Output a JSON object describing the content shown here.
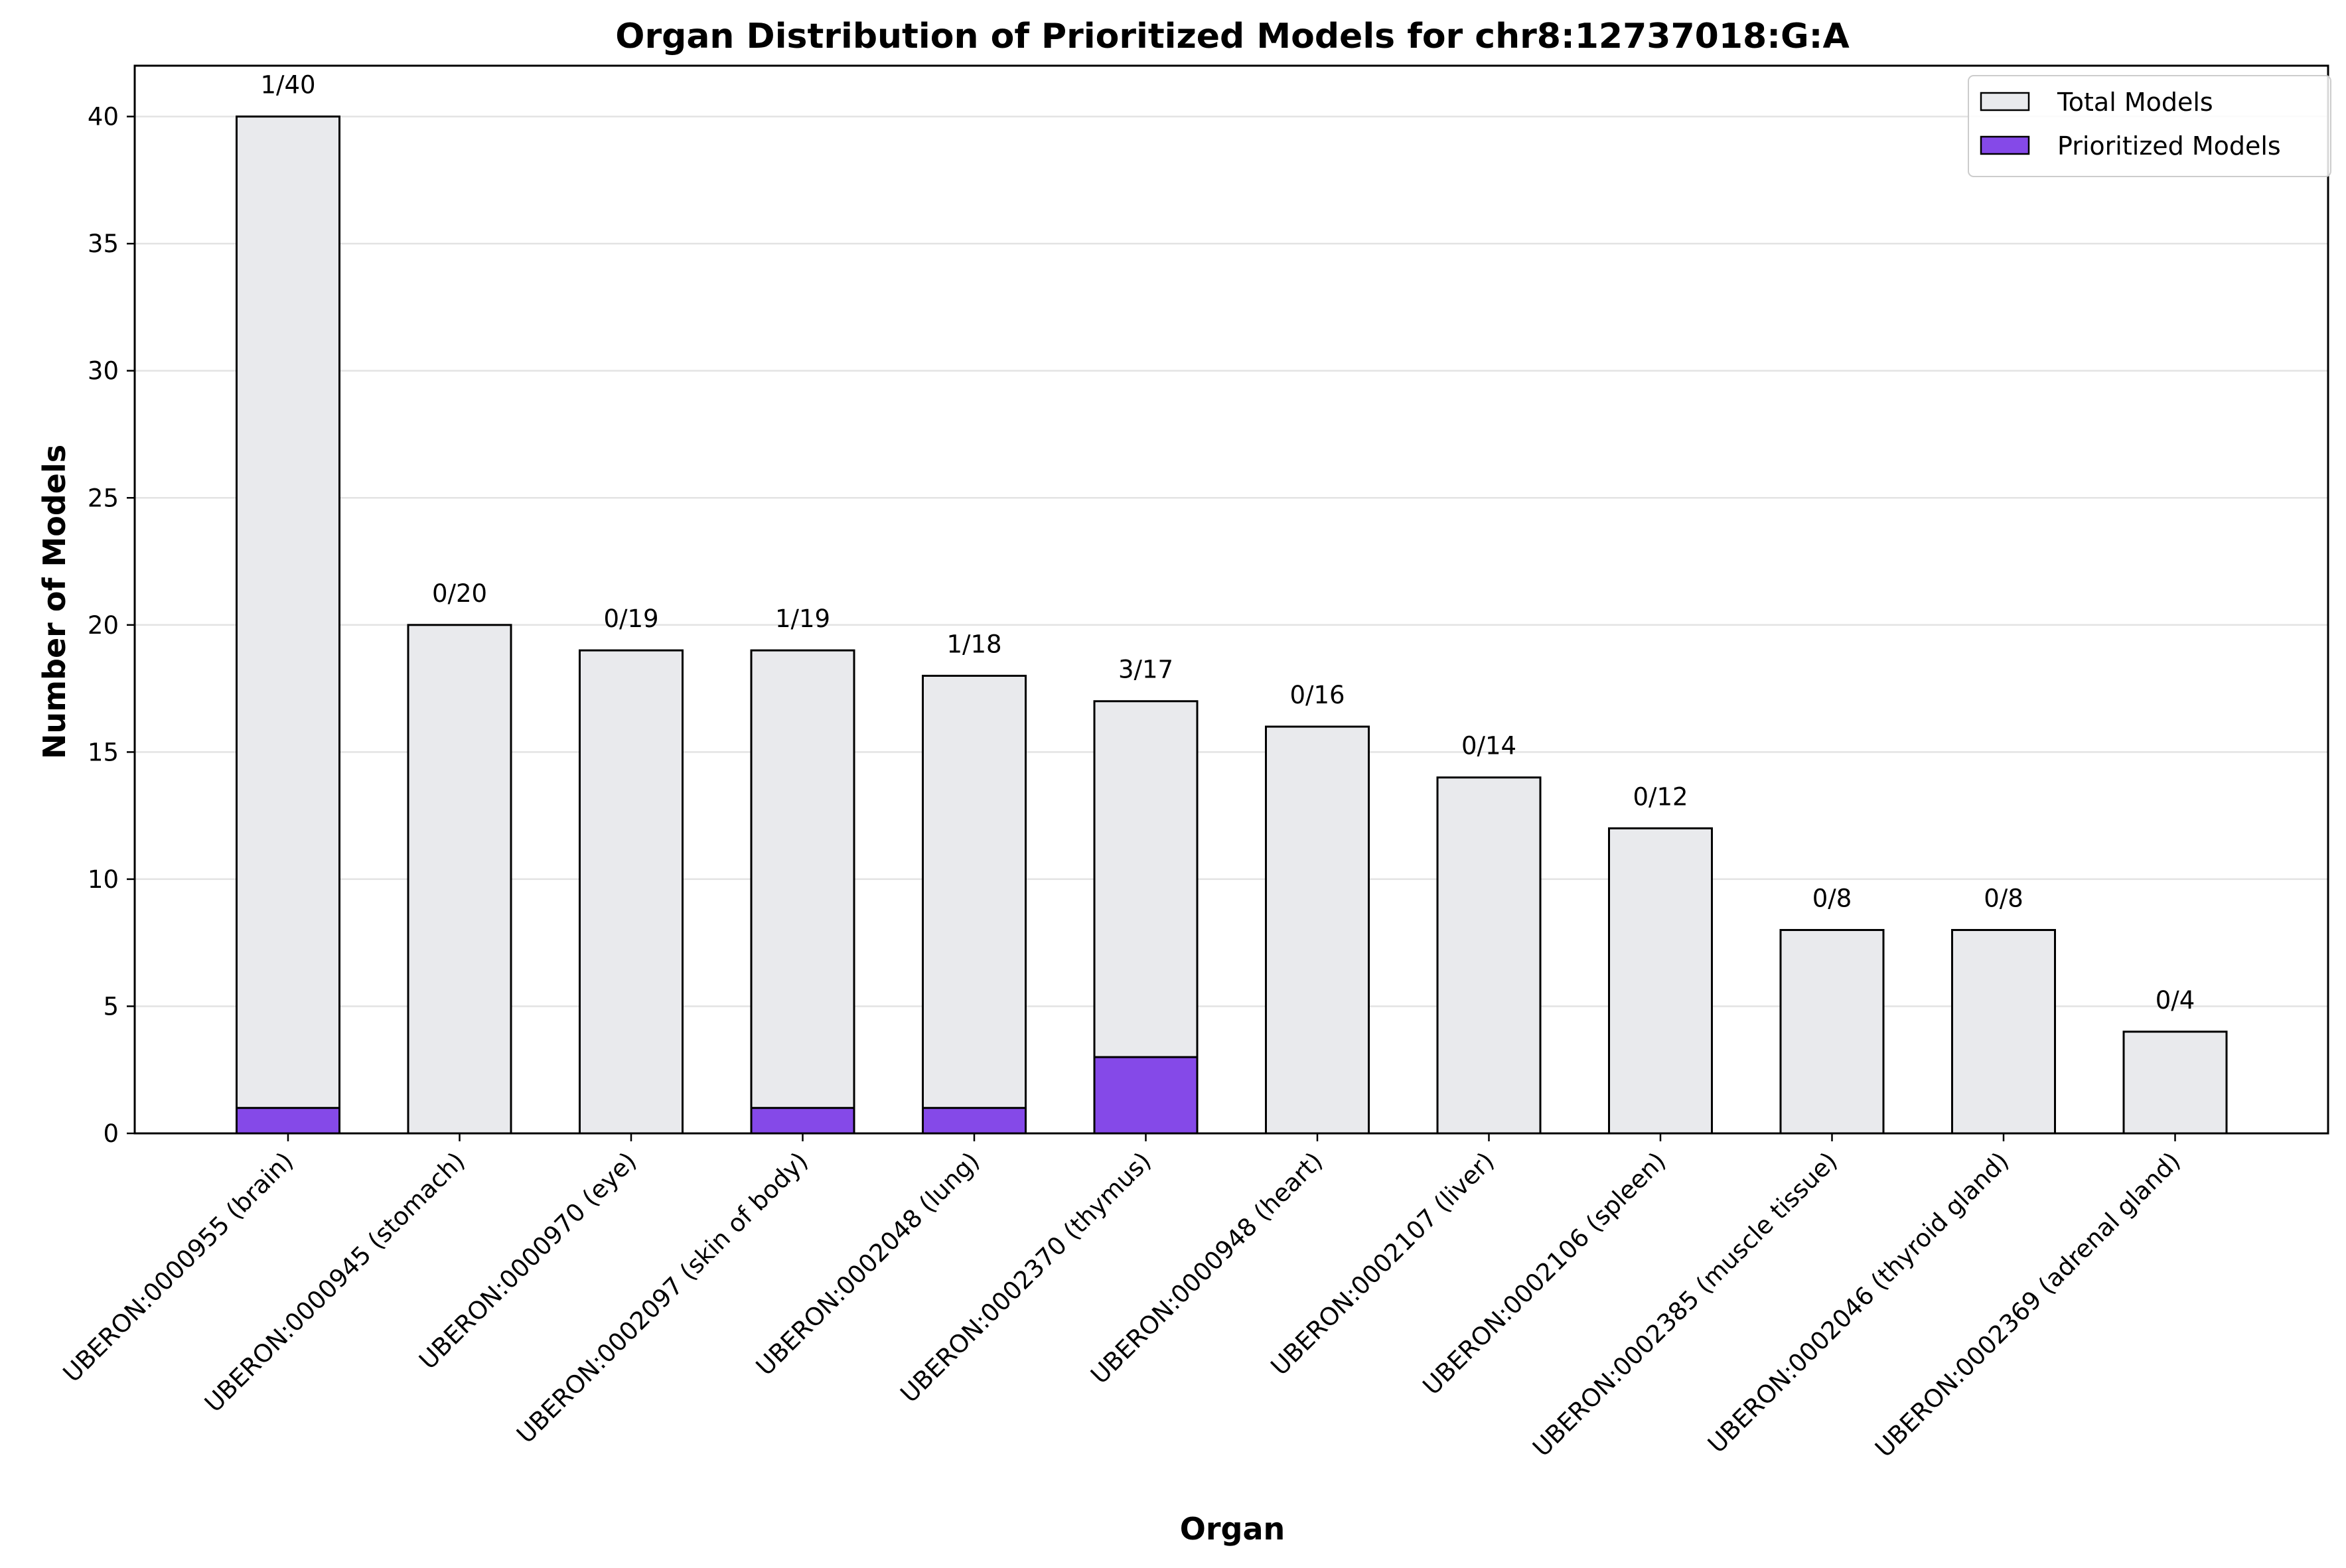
{
  "chart_data": {
    "type": "bar",
    "title": "Organ Distribution of Prioritized Models for chr8:12737018:G:A",
    "xlabel": "Organ",
    "ylabel": "Number of Models",
    "ylim": [
      0,
      42
    ],
    "yticks": [
      0,
      5,
      10,
      15,
      20,
      25,
      30,
      35,
      40
    ],
    "grid": "horizontal",
    "legend_position": "top-right",
    "categories": [
      "UBERON:0000955 (brain)",
      "UBERON:0000945 (stomach)",
      "UBERON:0000970 (eye)",
      "UBERON:0002097 (skin of body)",
      "UBERON:0002048 (lung)",
      "UBERON:0002370 (thymus)",
      "UBERON:0000948 (heart)",
      "UBERON:0002107 (liver)",
      "UBERON:0002106 (spleen)",
      "UBERON:0002385 (muscle tissue)",
      "UBERON:0002046 (thyroid gland)",
      "UBERON:0002369 (adrenal gland)"
    ],
    "series": [
      {
        "name": "Total Models",
        "color": "#e9eaed",
        "values": [
          40,
          20,
          19,
          19,
          18,
          17,
          16,
          14,
          12,
          8,
          8,
          4
        ]
      },
      {
        "name": "Prioritized Models",
        "color": "#8549e8",
        "values": [
          1,
          0,
          0,
          1,
          1,
          3,
          0,
          0,
          0,
          0,
          0,
          0
        ]
      }
    ],
    "annotations": [
      "1/40",
      "0/20",
      "0/19",
      "1/19",
      "1/18",
      "3/17",
      "0/16",
      "0/14",
      "0/12",
      "0/8",
      "0/8",
      "0/4"
    ]
  }
}
